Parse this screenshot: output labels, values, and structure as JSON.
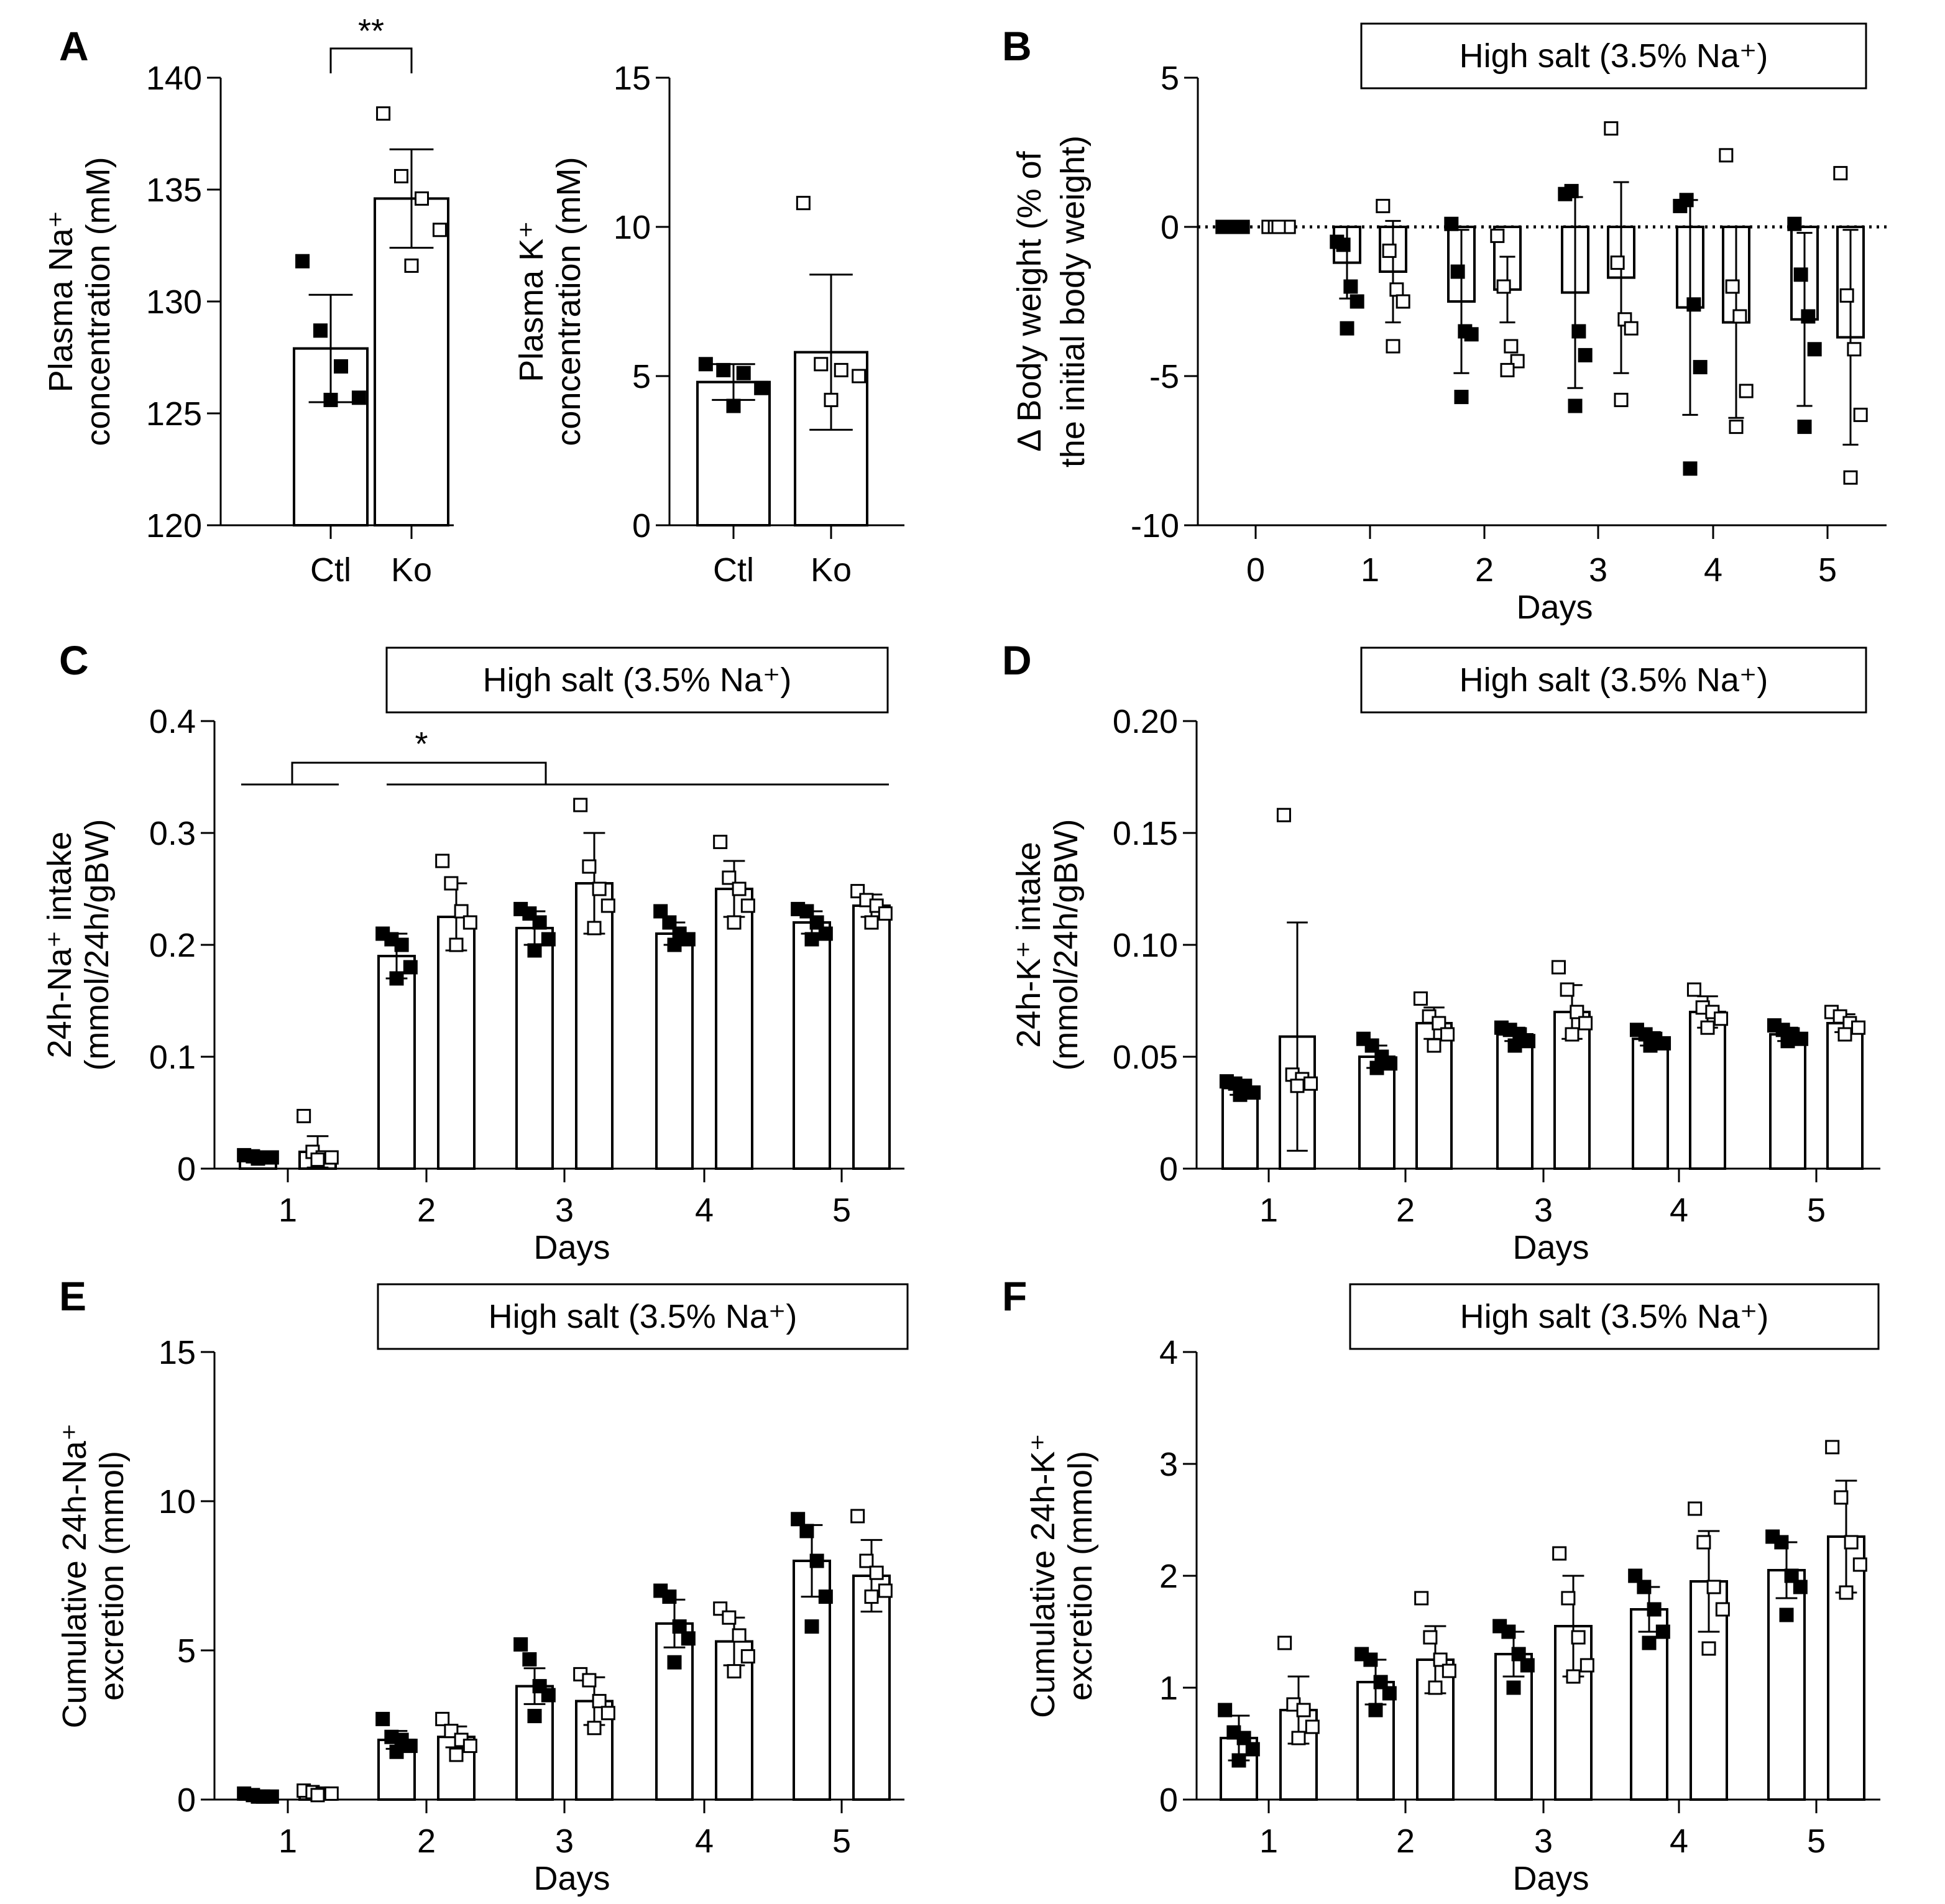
{
  "colors": {
    "ctl": "#000000",
    "ko": "#ffffff",
    "stroke": "#000000"
  },
  "panels": {
    "A": {
      "label": "A"
    },
    "B": {
      "label": "B"
    },
    "C": {
      "label": "C"
    },
    "D": {
      "label": "D"
    },
    "E": {
      "label": "E"
    },
    "F": {
      "label": "F"
    }
  },
  "chart_data": [
    {
      "id": "A1",
      "type": "bar",
      "panel": "A",
      "categories": [
        "Ctl",
        "Ko"
      ],
      "ylabel": [
        "Plasma Na⁺",
        "concentration (mM)"
      ],
      "yticks": [
        "120",
        "125",
        "130",
        "135",
        "140"
      ],
      "ylim": [
        120,
        140
      ],
      "series": [
        {
          "name": "Ctl",
          "mean": 127.9,
          "sd": 2.4,
          "points": [
            131.8,
            128.7,
            127.1,
            125.7,
            125.6
          ]
        },
        {
          "name": "Ko",
          "mean": 134.6,
          "sd": 2.2,
          "points": [
            138.4,
            135.6,
            134.6,
            133.2,
            131.6
          ]
        }
      ],
      "significance": "**"
    },
    {
      "id": "A2",
      "type": "bar",
      "panel": "A",
      "categories": [
        "Ctl",
        "Ko"
      ],
      "ylabel": [
        "Plasma K⁺",
        "concentration (mM)"
      ],
      "yticks": [
        "0",
        "5",
        "10",
        "15"
      ],
      "ylim": [
        0,
        15
      ],
      "series": [
        {
          "name": "Ctl",
          "mean": 4.8,
          "sd": 0.6,
          "points": [
            5.4,
            5.2,
            5.1,
            4.6,
            4.0
          ]
        },
        {
          "name": "Ko",
          "mean": 5.8,
          "sd": 2.6,
          "points": [
            10.8,
            5.4,
            5.2,
            5.0,
            4.2
          ]
        }
      ]
    },
    {
      "id": "B",
      "type": "bar",
      "panel": "B",
      "banner": "High salt (3.5% Na⁺)",
      "xlabel": "Days",
      "categories": [
        "0",
        "1",
        "2",
        "3",
        "4",
        "5"
      ],
      "ylabel": [
        "Δ Body weight (% of",
        "the initial body weight)"
      ],
      "yticks": [
        "-10",
        "-5",
        "0",
        "5"
      ],
      "ylim": [
        -10,
        5
      ],
      "baseline": 0,
      "series": [
        {
          "name": "Ctl",
          "mean": [
            0,
            -1.2,
            -2.5,
            -2.2,
            -2.7,
            -3.1
          ],
          "sd": [
            0,
            1.2,
            2.4,
            3.2,
            3.6,
            2.9
          ],
          "points": [
            [
              0,
              0,
              0,
              0,
              0
            ],
            [
              -0.5,
              -0.6,
              -2.0,
              -2.5,
              -3.4
            ],
            [
              0.1,
              -1.5,
              -3.5,
              -3.6,
              -5.7
            ],
            [
              1.1,
              1.2,
              -3.5,
              -4.3,
              -6.0
            ],
            [
              0.7,
              0.9,
              -2.6,
              -4.7,
              -8.1
            ],
            [
              0.1,
              -1.6,
              -3.0,
              -4.1,
              -6.7
            ]
          ]
        },
        {
          "name": "Ko",
          "mean": [
            0,
            -1.5,
            -2.1,
            -1.7,
            -3.2,
            -3.7
          ],
          "sd": [
            0,
            1.7,
            1.1,
            3.2,
            3.2,
            3.6
          ],
          "points": [
            [
              0,
              0,
              0,
              0,
              0
            ],
            [
              0.7,
              -0.8,
              -2.1,
              -2.5,
              -4.0
            ],
            [
              -0.3,
              -2.0,
              -4.0,
              -4.5,
              -4.8
            ],
            [
              3.3,
              -1.2,
              -3.1,
              -3.4,
              -5.8
            ],
            [
              2.4,
              -2.0,
              -3.0,
              -5.5,
              -6.7
            ],
            [
              1.8,
              -2.3,
              -4.1,
              -6.3,
              -8.4
            ]
          ]
        }
      ]
    },
    {
      "id": "C",
      "type": "bar",
      "panel": "C",
      "banner": "High salt (3.5% Na⁺)",
      "xlabel": "Days",
      "categories": [
        "1",
        "2",
        "3",
        "4",
        "5"
      ],
      "ylabel": [
        "24h-Na⁺ intake",
        "(mmol/24h/gBW)"
      ],
      "yticks": [
        "0",
        "0.1",
        "0.2",
        "0.3",
        "0.4"
      ],
      "ylim": [
        0,
        0.4
      ],
      "significance": "*",
      "series": [
        {
          "name": "Ctl",
          "mean": [
            0.01,
            0.19,
            0.215,
            0.21,
            0.22
          ],
          "sd": [
            0.004,
            0.02,
            0.015,
            0.01,
            0.01
          ],
          "points": [
            [
              0.012,
              0.011,
              0.01,
              0.01,
              0.009
            ],
            [
              0.21,
              0.205,
              0.2,
              0.18,
              0.17
            ],
            [
              0.232,
              0.228,
              0.22,
              0.205,
              0.195
            ],
            [
              0.23,
              0.22,
              0.21,
              0.205,
              0.2
            ],
            [
              0.232,
              0.23,
              0.22,
              0.21,
              0.205
            ]
          ]
        },
        {
          "name": "Ko",
          "mean": [
            0.015,
            0.225,
            0.255,
            0.25,
            0.235
          ],
          "sd": [
            0.014,
            0.03,
            0.045,
            0.025,
            0.01
          ],
          "points": [
            [
              0.047,
              0.015,
              0.01,
              0.01,
              0.008
            ],
            [
              0.275,
              0.255,
              0.23,
              0.22,
              0.2
            ],
            [
              0.325,
              0.27,
              0.25,
              0.235,
              0.215
            ],
            [
              0.292,
              0.26,
              0.25,
              0.235,
              0.22
            ],
            [
              0.248,
              0.24,
              0.235,
              0.228,
              0.22
            ]
          ]
        }
      ]
    },
    {
      "id": "D",
      "type": "bar",
      "panel": "D",
      "banner": "High salt (3.5% Na⁺)",
      "xlabel": "Days",
      "categories": [
        "1",
        "2",
        "3",
        "4",
        "5"
      ],
      "ylabel": [
        "24h-K⁺ intake",
        "(mmol/24h/gBW)"
      ],
      "yticks": [
        "0",
        "0.05",
        "0.10",
        "0.15",
        "0.20"
      ],
      "ylim": [
        0,
        0.2
      ],
      "series": [
        {
          "name": "Ctl",
          "mean": [
            0.036,
            0.05,
            0.06,
            0.058,
            0.06
          ],
          "sd": [
            0.003,
            0.005,
            0.003,
            0.003,
            0.003
          ],
          "points": [
            [
              0.039,
              0.038,
              0.037,
              0.034,
              0.033
            ],
            [
              0.058,
              0.055,
              0.05,
              0.047,
              0.045
            ],
            [
              0.063,
              0.062,
              0.06,
              0.057,
              0.055
            ],
            [
              0.062,
              0.06,
              0.058,
              0.056,
              0.055
            ],
            [
              0.064,
              0.062,
              0.06,
              0.058,
              0.057
            ]
          ]
        },
        {
          "name": "Ko",
          "mean": [
            0.059,
            0.065,
            0.07,
            0.07,
            0.065
          ],
          "sd": [
            0.051,
            0.007,
            0.012,
            0.007,
            0.004
          ],
          "points": [
            [
              0.158,
              0.042,
              0.04,
              0.038,
              0.037
            ],
            [
              0.076,
              0.068,
              0.065,
              0.06,
              0.055
            ],
            [
              0.09,
              0.08,
              0.07,
              0.065,
              0.06
            ],
            [
              0.08,
              0.072,
              0.07,
              0.067,
              0.063
            ],
            [
              0.07,
              0.068,
              0.065,
              0.063,
              0.06
            ]
          ]
        }
      ]
    },
    {
      "id": "E",
      "type": "bar",
      "panel": "E",
      "banner": "High salt (3.5% Na⁺)",
      "xlabel": "Days",
      "categories": [
        "1",
        "2",
        "3",
        "4",
        "5"
      ],
      "ylabel": [
        "Cumulative 24h-Na⁺",
        "excretion (mmol)"
      ],
      "yticks": [
        "0",
        "5",
        "10",
        "15"
      ],
      "ylim": [
        0,
        15
      ],
      "series": [
        {
          "name": "Ctl",
          "mean": [
            0.15,
            2.0,
            3.8,
            5.9,
            8.0
          ],
          "sd": [
            0.05,
            0.3,
            0.6,
            0.8,
            1.2
          ],
          "points": [
            [
              0.2,
              0.15,
              0.1,
              0.1,
              0.1
            ],
            [
              2.7,
              2.1,
              2.0,
              1.8,
              1.6
            ],
            [
              5.2,
              4.7,
              3.8,
              3.5,
              2.8
            ],
            [
              7.0,
              6.8,
              5.8,
              5.4,
              4.6
            ],
            [
              9.4,
              9.0,
              8.0,
              6.8,
              5.8
            ]
          ]
        },
        {
          "name": "Ko",
          "mean": [
            0.2,
            2.1,
            3.3,
            5.3,
            7.5
          ],
          "sd": [
            0.05,
            0.35,
            0.8,
            0.8,
            1.2
          ],
          "points": [
            [
              0.3,
              0.25,
              0.2,
              0.2,
              0.15
            ],
            [
              2.7,
              2.3,
              2.0,
              1.8,
              1.5
            ],
            [
              4.2,
              4.0,
              3.3,
              2.9,
              2.4
            ],
            [
              6.4,
              6.1,
              5.5,
              4.8,
              4.3
            ],
            [
              9.5,
              8.0,
              7.6,
              7.0,
              6.8
            ]
          ]
        }
      ]
    },
    {
      "id": "F",
      "type": "bar",
      "panel": "F",
      "banner": "High salt (3.5% Na⁺)",
      "xlabel": "Days",
      "categories": [
        "1",
        "2",
        "3",
        "4",
        "5"
      ],
      "ylabel": [
        "Cumulative 24h-K⁺",
        "excretion (mmol)"
      ],
      "yticks": [
        "0",
        "1",
        "2",
        "3",
        "4"
      ],
      "ylim": [
        0,
        4
      ],
      "series": [
        {
          "name": "Ctl",
          "mean": [
            0.55,
            1.05,
            1.3,
            1.7,
            2.05
          ],
          "sd": [
            0.2,
            0.2,
            0.2,
            0.2,
            0.25
          ],
          "points": [
            [
              0.8,
              0.6,
              0.55,
              0.45,
              0.35
            ],
            [
              1.3,
              1.25,
              1.05,
              0.95,
              0.8
            ],
            [
              1.55,
              1.5,
              1.3,
              1.2,
              1.0
            ],
            [
              2.0,
              1.9,
              1.7,
              1.5,
              1.4
            ],
            [
              2.35,
              2.3,
              2.0,
              1.9,
              1.65
            ]
          ]
        },
        {
          "name": "Ko",
          "mean": [
            0.8,
            1.25,
            1.55,
            1.95,
            2.35
          ],
          "sd": [
            0.3,
            0.3,
            0.45,
            0.45,
            0.5
          ],
          "points": [
            [
              1.4,
              0.85,
              0.8,
              0.65,
              0.55
            ],
            [
              1.8,
              1.45,
              1.25,
              1.15,
              1.0
            ],
            [
              2.2,
              1.8,
              1.45,
              1.2,
              1.1
            ],
            [
              2.6,
              2.3,
              1.9,
              1.7,
              1.35
            ],
            [
              3.15,
              2.7,
              2.3,
              2.1,
              1.85
            ]
          ]
        }
      ]
    }
  ]
}
